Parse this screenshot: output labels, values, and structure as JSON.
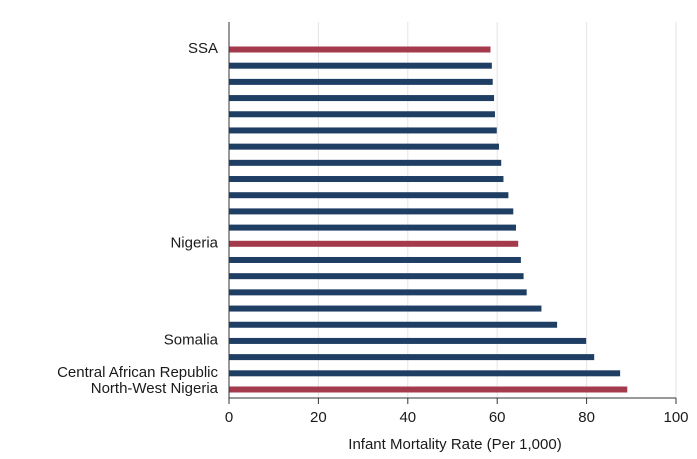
{
  "chart_data": {
    "type": "bar",
    "orientation": "horizontal",
    "xlabel": "Infant Mortality Rate (Per 1,000)",
    "ylabel": "",
    "xlim": [
      0,
      100
    ],
    "xticks": [
      0,
      20,
      40,
      60,
      80,
      100
    ],
    "grid": true,
    "colors": {
      "highlight": "#a43b4c",
      "default": "#1f3e64",
      "grid": "#e4e4e4",
      "axis": "#333333"
    },
    "bars": [
      {
        "label": "SSA",
        "value": 58.5,
        "highlight": true
      },
      {
        "label": "",
        "value": 58.8,
        "highlight": false
      },
      {
        "label": "",
        "value": 59.0,
        "highlight": false
      },
      {
        "label": "",
        "value": 59.3,
        "highlight": false
      },
      {
        "label": "",
        "value": 59.5,
        "highlight": false
      },
      {
        "label": "",
        "value": 59.9,
        "highlight": false
      },
      {
        "label": "",
        "value": 60.4,
        "highlight": false
      },
      {
        "label": "",
        "value": 60.9,
        "highlight": false
      },
      {
        "label": "",
        "value": 61.4,
        "highlight": false
      },
      {
        "label": "",
        "value": 62.5,
        "highlight": false
      },
      {
        "label": "",
        "value": 63.6,
        "highlight": false
      },
      {
        "label": "",
        "value": 64.2,
        "highlight": false
      },
      {
        "label": "Nigeria",
        "value": 64.7,
        "highlight": true
      },
      {
        "label": "",
        "value": 65.3,
        "highlight": false
      },
      {
        "label": "",
        "value": 65.9,
        "highlight": false
      },
      {
        "label": "",
        "value": 66.6,
        "highlight": false
      },
      {
        "label": "",
        "value": 69.9,
        "highlight": false
      },
      {
        "label": "",
        "value": 73.4,
        "highlight": false
      },
      {
        "label": "Somalia",
        "value": 79.9,
        "highlight": false
      },
      {
        "label": "",
        "value": 81.7,
        "highlight": false
      },
      {
        "label": "Central African Republic",
        "value": 87.5,
        "highlight": false
      },
      {
        "label": "North-West Nigeria",
        "value": 89.1,
        "highlight": true
      }
    ]
  }
}
